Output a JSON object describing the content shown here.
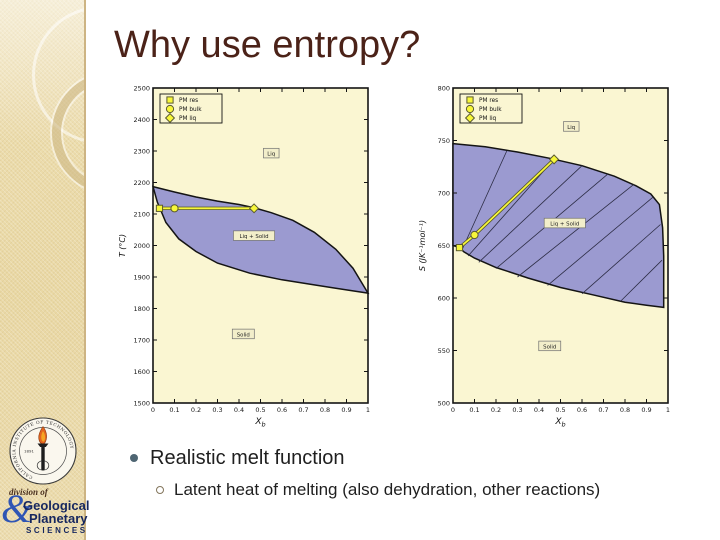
{
  "slide": {
    "title": "Why use entropy?",
    "bullets": [
      {
        "level": 1,
        "text": "Realistic melt function"
      },
      {
        "level": 2,
        "text": "Latent heat of melting (also dehydration, other reactions)"
      }
    ]
  },
  "sidebar": {
    "seal": {
      "ring_text": "CALIFORNIA INSTITUTE OF TECHNOLOGY",
      "year": "1891",
      "torch_icon": "torch-flame-icon"
    },
    "gps": {
      "division_of": "division of",
      "ampersand": "&",
      "line1": "Geological",
      "line2": "Planetary",
      "line3": "SCIENCES"
    }
  },
  "colors": {
    "title": "#4b2218",
    "plot_bg": "#faf6d2",
    "region": "#9b9ad0",
    "marker_yellow": "#f7f73a",
    "sidebar_beige": "#eadcae",
    "gps_navy": "#15265e",
    "amp_blue": "#2f55b4",
    "bullet1": "#4e6572"
  },
  "chart_data": [
    {
      "type": "area",
      "name": "temperature-composition-phase-diagram",
      "xlabel": "X",
      "xlabel_sub": "b",
      "ylabel": "T (°C)",
      "xlim": [
        0,
        1
      ],
      "ylim": [
        1500,
        2500
      ],
      "xticks": [
        "0",
        "0.1",
        "0.2",
        "0.3",
        "0.4",
        "0.5",
        "0.6",
        "0.7",
        "0.8",
        "0.9",
        "1"
      ],
      "yticks": [
        "2500",
        "2400",
        "2300",
        "2200",
        "2100",
        "2000",
        "1900",
        "1800",
        "1700",
        "1600",
        "1500"
      ],
      "legend": [
        {
          "marker": "square",
          "label": "PM res"
        },
        {
          "marker": "circle",
          "label": "PM bulk"
        },
        {
          "marker": "diamond",
          "label": "PM liq"
        }
      ],
      "liquidus": [
        [
          0,
          2187
        ],
        [
          0.1,
          2170
        ],
        [
          0.2,
          2154
        ],
        [
          0.3,
          2141
        ],
        [
          0.4,
          2130
        ],
        [
          0.47,
          2120
        ],
        [
          0.55,
          2104
        ],
        [
          0.65,
          2080
        ],
        [
          0.75,
          2042
        ],
        [
          0.85,
          1988
        ],
        [
          0.93,
          1928
        ],
        [
          1,
          1849
        ]
      ],
      "solidus": [
        [
          1,
          1849
        ],
        [
          0.93,
          1856
        ],
        [
          0.85,
          1864
        ],
        [
          0.75,
          1875
        ],
        [
          0.6,
          1891
        ],
        [
          0.45,
          1912
        ],
        [
          0.3,
          1944
        ],
        [
          0.2,
          1981
        ],
        [
          0.12,
          2021
        ],
        [
          0.06,
          2073
        ],
        [
          0.02,
          2138
        ],
        [
          0,
          2187
        ]
      ],
      "tie_lines": [],
      "pm_points": {
        "res": [
          0.03,
          2118
        ],
        "bulk": [
          0.1,
          2118
        ],
        "liq": [
          0.47,
          2118
        ]
      },
      "region_labels": [
        {
          "text": "Liq",
          "x": 0.55,
          "y": 2292
        },
        {
          "text": "Liq + Solid",
          "x": 0.47,
          "y": 2030
        },
        {
          "text": "Solid",
          "x": 0.42,
          "y": 1718
        }
      ]
    },
    {
      "type": "area",
      "name": "entropy-composition-phase-diagram",
      "xlabel": "X",
      "xlabel_sub": "b",
      "ylabel": "S (JK⁻¹mol⁻¹)",
      "xlim": [
        0,
        1
      ],
      "ylim": [
        500,
        800
      ],
      "xticks": [
        "0",
        "0.1",
        "0.2",
        "0.3",
        "0.4",
        "0.5",
        "0.6",
        "0.7",
        "0.8",
        "0.9",
        "1"
      ],
      "yticks": [
        "800",
        "750",
        "700",
        "650",
        "600",
        "550",
        "500"
      ],
      "legend": [
        {
          "marker": "square",
          "label": "PM res"
        },
        {
          "marker": "circle",
          "label": "PM bulk"
        },
        {
          "marker": "diamond",
          "label": "PM liq"
        }
      ],
      "liquidus": [
        [
          0,
          747
        ],
        [
          0.15,
          744
        ],
        [
          0.3,
          739
        ],
        [
          0.45,
          733
        ],
        [
          0.6,
          726
        ],
        [
          0.75,
          716
        ],
        [
          0.85,
          707
        ],
        [
          0.92,
          699
        ],
        [
          0.96,
          689
        ],
        [
          0.975,
          667
        ],
        [
          0.98,
          640
        ],
        [
          0.98,
          591
        ]
      ],
      "solidus": [
        [
          0.98,
          591
        ],
        [
          0.9,
          593
        ],
        [
          0.8,
          596
        ],
        [
          0.65,
          603
        ],
        [
          0.5,
          610
        ],
        [
          0.35,
          619
        ],
        [
          0.2,
          629
        ],
        [
          0.1,
          638
        ],
        [
          0.05,
          644
        ],
        [
          0.03,
          648
        ],
        [
          0,
          650
        ]
      ],
      "tie_lines": [
        [
          [
            0.04,
            645
          ],
          [
            0.25,
            740
          ]
        ],
        [
          [
            0.07,
            640
          ],
          [
            0.47,
            732
          ]
        ],
        [
          [
            0.12,
            634
          ],
          [
            0.6,
            726
          ]
        ],
        [
          [
            0.2,
            628
          ],
          [
            0.72,
            718
          ]
        ],
        [
          [
            0.3,
            620
          ],
          [
            0.84,
            708
          ]
        ],
        [
          [
            0.44,
            612
          ],
          [
            0.93,
            696
          ]
        ],
        [
          [
            0.6,
            604
          ],
          [
            0.965,
            670
          ]
        ],
        [
          [
            0.78,
            597
          ],
          [
            0.972,
            636
          ]
        ]
      ],
      "pm_points": {
        "res": [
          0.03,
          648
        ],
        "bulk": [
          0.1,
          660
        ],
        "liq": [
          0.47,
          732
        ]
      },
      "region_labels": [
        {
          "text": "Liq",
          "x": 0.55,
          "y": 763
        },
        {
          "text": "Liq + Solid",
          "x": 0.52,
          "y": 671
        },
        {
          "text": "Solid",
          "x": 0.45,
          "y": 554
        }
      ]
    }
  ]
}
